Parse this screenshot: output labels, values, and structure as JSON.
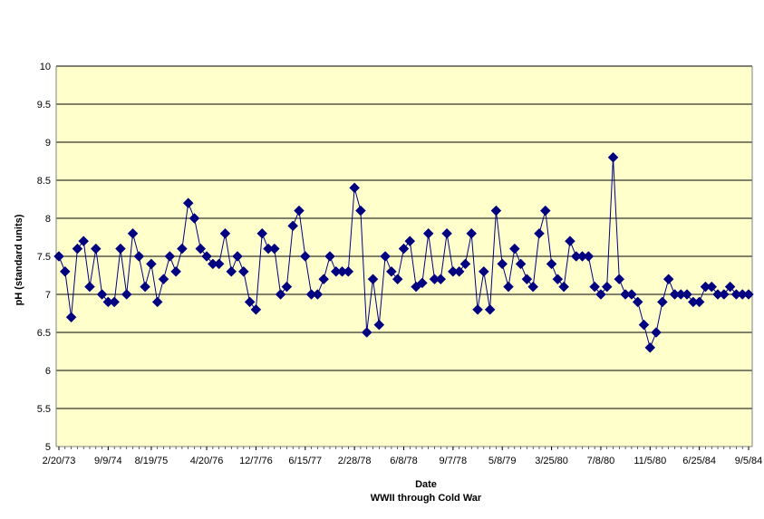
{
  "chart_data": {
    "type": "line",
    "title": "",
    "xlabel": "Date",
    "xlabel_sub": "WWII through Cold War",
    "ylabel": "pH (standard units)",
    "ylim": [
      5,
      10
    ],
    "yticks": [
      "5",
      "5.5",
      "6",
      "6.5",
      "7",
      "7.5",
      "8",
      "8.5",
      "9",
      "9.5",
      "10"
    ],
    "grid": true,
    "legend": "none",
    "colors": {
      "plot_background": "#FFFFCC",
      "series": "#000080",
      "gridline": "#000000"
    },
    "x_tick_labels": [
      {
        "label": "2/20/73",
        "index": 0
      },
      {
        "label": "9/9/74",
        "index": 8
      },
      {
        "label": "8/19/75",
        "index": 15
      },
      {
        "label": "4/20/76",
        "index": 24
      },
      {
        "label": "12/7/76",
        "index": 32
      },
      {
        "label": "6/15/77",
        "index": 40
      },
      {
        "label": "2/28/78",
        "index": 48
      },
      {
        "label": "6/8/78",
        "index": 56
      },
      {
        "label": "9/7/78",
        "index": 64
      },
      {
        "label": "5/8/79",
        "index": 72
      },
      {
        "label": "3/25/80",
        "index": 80
      },
      {
        "label": "7/8/80",
        "index": 88
      },
      {
        "label": "11/5/80",
        "index": 96
      },
      {
        "label": "6/25/84",
        "index": 104
      },
      {
        "label": "9/5/84",
        "index": 112
      }
    ],
    "series": [
      {
        "marker": "diamond",
        "values": [
          7.5,
          7.3,
          6.7,
          7.6,
          7.7,
          7.1,
          7.6,
          7.0,
          6.9,
          6.9,
          7.6,
          7.0,
          7.8,
          7.5,
          7.1,
          7.4,
          6.9,
          7.2,
          7.5,
          7.3,
          7.6,
          8.2,
          8.0,
          7.6,
          7.5,
          7.4,
          7.4,
          7.8,
          7.3,
          7.5,
          7.3,
          6.9,
          6.8,
          7.8,
          7.6,
          7.6,
          7.0,
          7.1,
          7.9,
          8.1,
          7.5,
          7.0,
          7.0,
          7.2,
          7.5,
          7.3,
          7.3,
          7.3,
          8.4,
          8.1,
          6.5,
          7.2,
          6.6,
          7.5,
          7.3,
          7.2,
          7.6,
          7.7,
          7.1,
          7.15,
          7.8,
          7.2,
          7.2,
          7.8,
          7.3,
          7.3,
          7.4,
          7.8,
          6.8,
          7.3,
          6.8,
          8.1,
          7.4,
          7.1,
          7.6,
          7.4,
          7.2,
          7.1,
          7.8,
          8.1,
          7.4,
          7.2,
          7.1,
          7.7,
          7.5,
          7.5,
          7.5,
          7.1,
          7.0,
          7.1,
          8.8,
          7.2,
          7.0,
          7.0,
          6.9,
          6.6,
          6.3,
          6.5,
          6.9,
          7.2,
          7.0,
          7.0,
          7.0,
          6.9,
          6.9,
          7.1,
          7.1,
          7.0,
          7.0,
          7.1,
          7.0,
          7.0,
          7.0
        ]
      }
    ]
  }
}
